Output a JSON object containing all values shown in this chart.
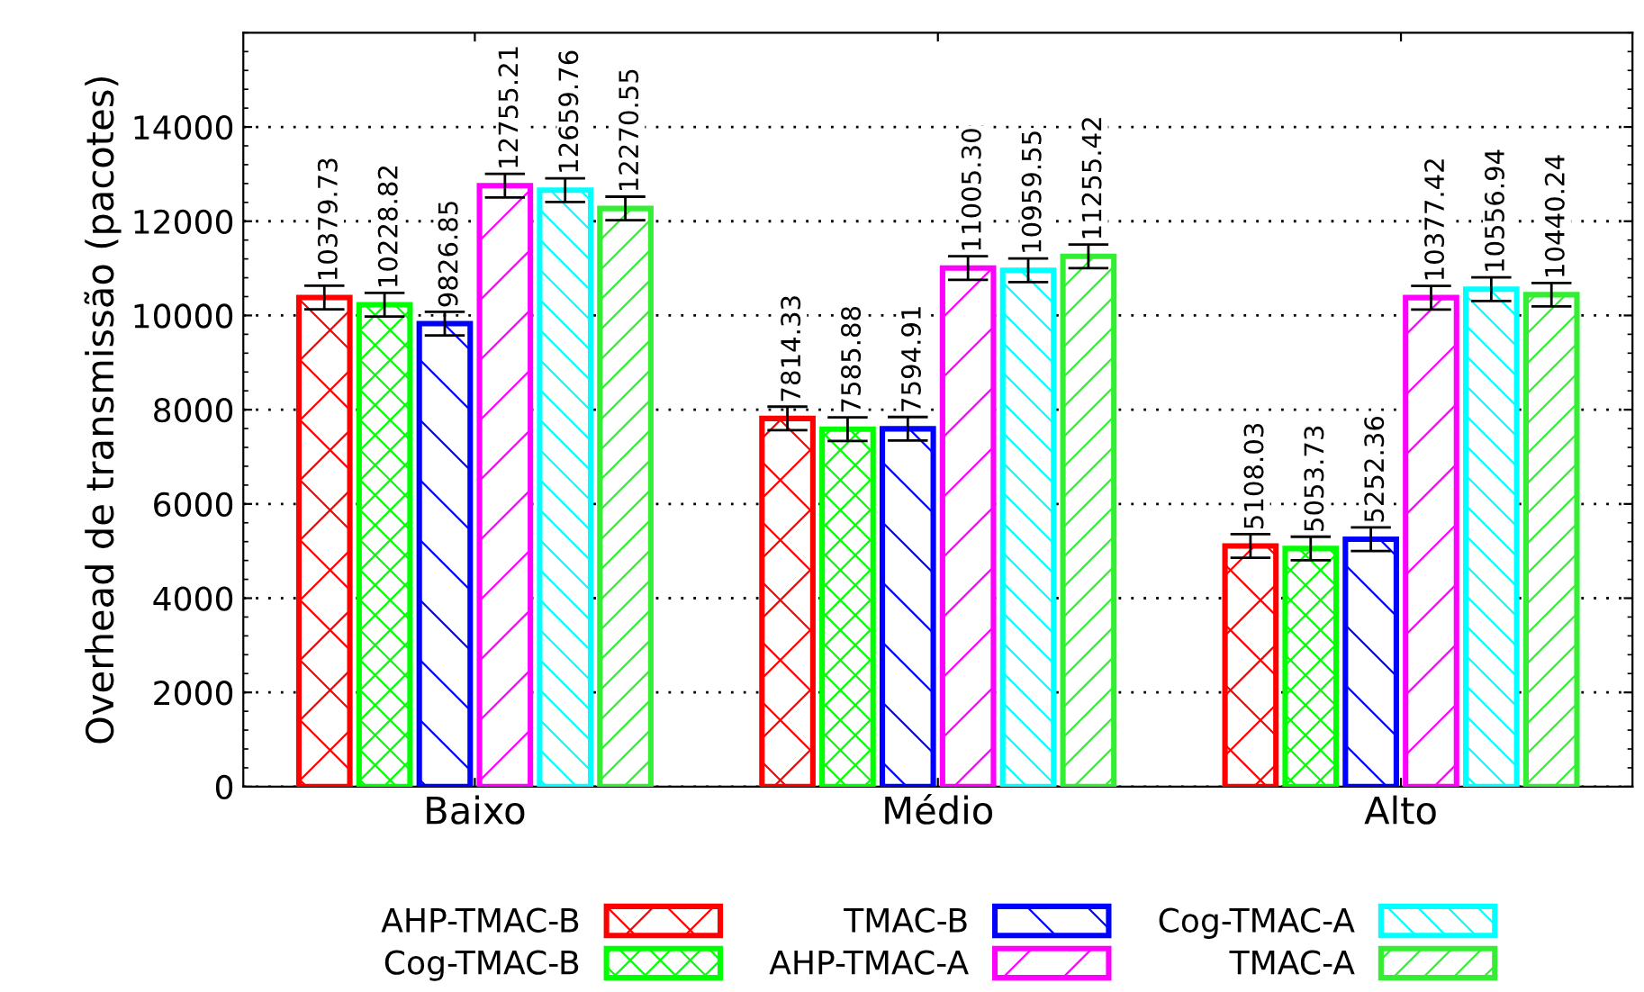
{
  "chart_data": {
    "type": "bar",
    "ylabel": "Overhead de transmissão (pacotes)",
    "categories": [
      "Baixo",
      "Médio",
      "Alto"
    ],
    "series": [
      {
        "name": "AHP-TMAC-B",
        "color": "#ff0000",
        "values": [
          10379.73,
          7814.33,
          5108.03
        ],
        "value_labels": [
          "10379.73",
          "7814.33",
          "5108.03"
        ],
        "errors": [
          250,
          250,
          250
        ]
      },
      {
        "name": "Cog-TMAC-B",
        "color": "#00ff00",
        "values": [
          10228.82,
          7585.88,
          5053.73
        ],
        "value_labels": [
          "10228.82",
          "7585.88",
          "5053.73"
        ],
        "errors": [
          250,
          250,
          250
        ]
      },
      {
        "name": "TMAC-B",
        "color": "#0000ff",
        "values": [
          9826.85,
          7594.91,
          5252.36
        ],
        "value_labels": [
          "9826.85",
          "7594.91",
          "5252.36"
        ],
        "errors": [
          250,
          250,
          250
        ]
      },
      {
        "name": "AHP-TMAC-A",
        "color": "#ff00ff",
        "values": [
          12755.21,
          11005.3,
          10377.42
        ],
        "value_labels": [
          "12755.21",
          "11005.30",
          "10377.42"
        ],
        "errors": [
          250,
          250,
          250
        ]
      },
      {
        "name": "Cog-TMAC-A",
        "color": "#00ffff",
        "values": [
          12659.76,
          10959.55,
          10556.94
        ],
        "value_labels": [
          "12659.76",
          "10959.55",
          "10556.94"
        ],
        "errors": [
          250,
          250,
          250
        ]
      },
      {
        "name": "TMAC-A",
        "color": "#33ee33",
        "values": [
          12270.55,
          11255.42,
          10440.24
        ],
        "value_labels": [
          "12270.55",
          "11255.42",
          "10440.24"
        ],
        "errors": [
          250,
          250,
          250
        ]
      }
    ],
    "ylim": [
      0,
      16000
    ],
    "yticks": [
      0,
      2000,
      4000,
      6000,
      8000,
      10000,
      12000,
      14000
    ],
    "grid": "y",
    "legend": "bottom"
  }
}
